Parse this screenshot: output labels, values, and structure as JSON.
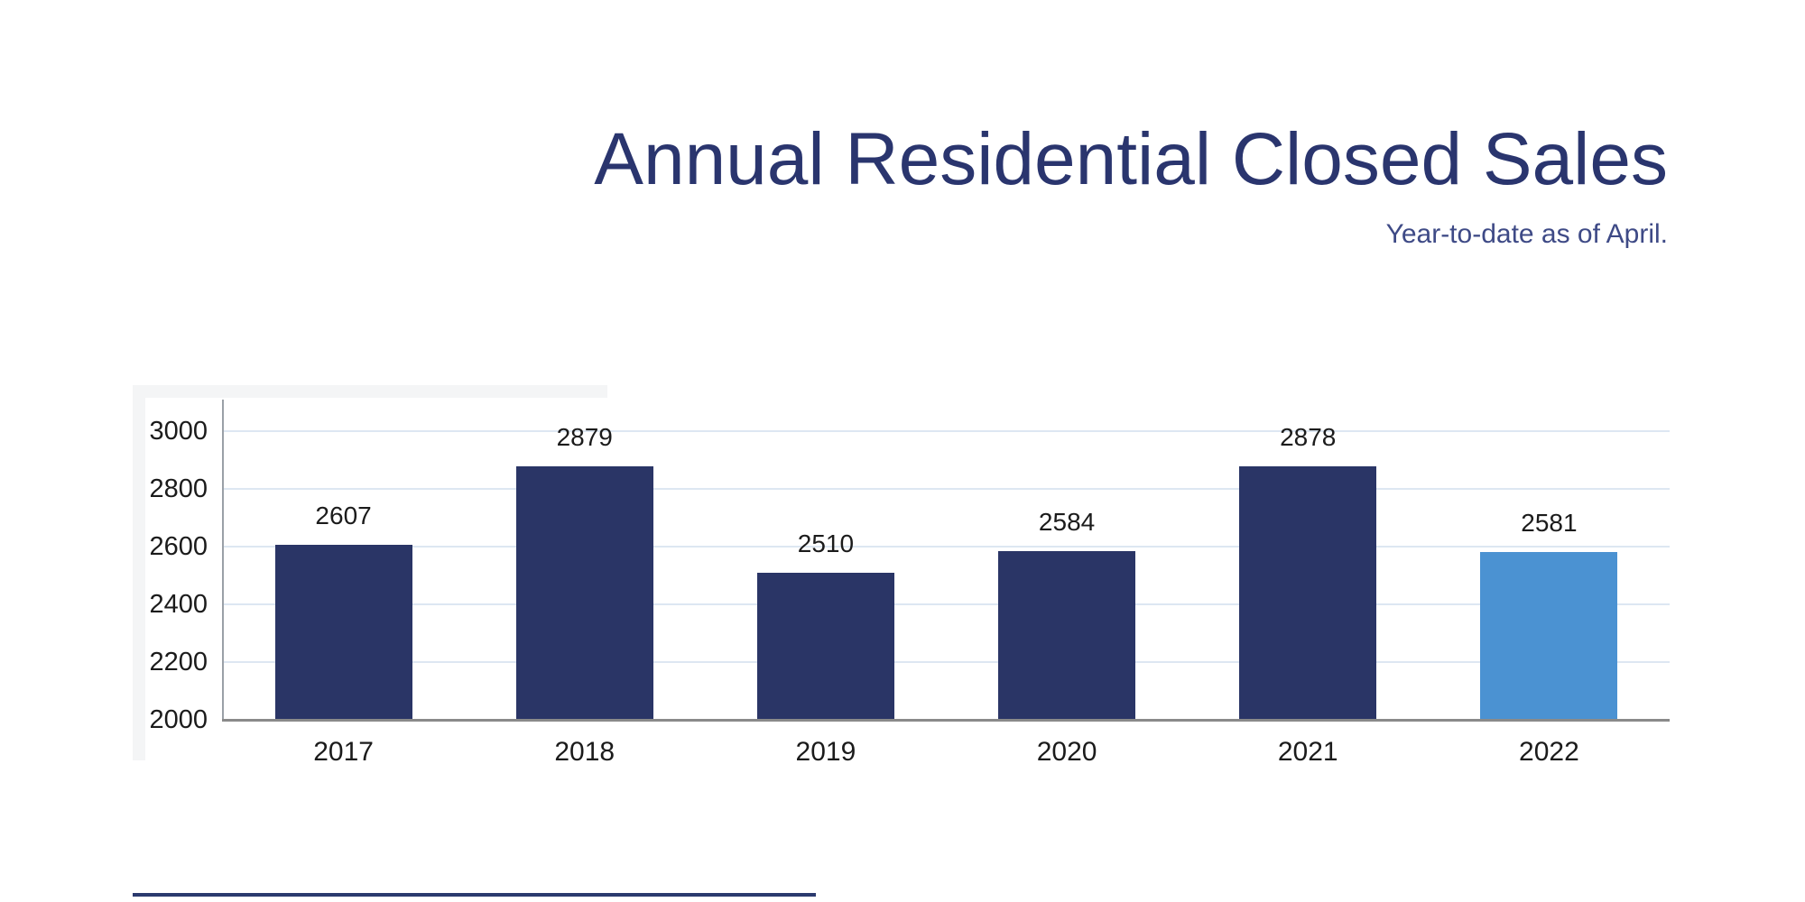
{
  "header": {
    "title": "Annual Residential Closed Sales",
    "subtitle": "Year-to-date as of April.",
    "title_color": "#2a356e",
    "subtitle_color": "#3e4a86"
  },
  "chart_data": {
    "type": "bar",
    "title": "Annual Residential Closed Sales",
    "subtitle": "Year-to-date as of April.",
    "categories": [
      "2017",
      "2018",
      "2019",
      "2020",
      "2021",
      "2022"
    ],
    "values": [
      2607,
      2879,
      2510,
      2584,
      2878,
      2581
    ],
    "bar_colors": [
      "#2a3566",
      "#2a3566",
      "#2a3566",
      "#2a3566",
      "#2a3566",
      "#4b92d2"
    ],
    "value_labels_shown": true,
    "xlabel": "",
    "ylabel": "",
    "ylim": [
      2000,
      3050
    ],
    "yticks": [
      2000,
      2200,
      2400,
      2600,
      2800,
      3000
    ],
    "grid": true,
    "legend": "none",
    "colors": {
      "navy_bar": "#2a3566",
      "highlight_bar": "#4b92d2",
      "gridline": "#dde7f2",
      "x_axis_line": "#8a8a8a",
      "y_axis_line": "#9aa0a7",
      "tick_text": "#1b1b1b",
      "footer_rule": "#2b3a6e"
    }
  }
}
